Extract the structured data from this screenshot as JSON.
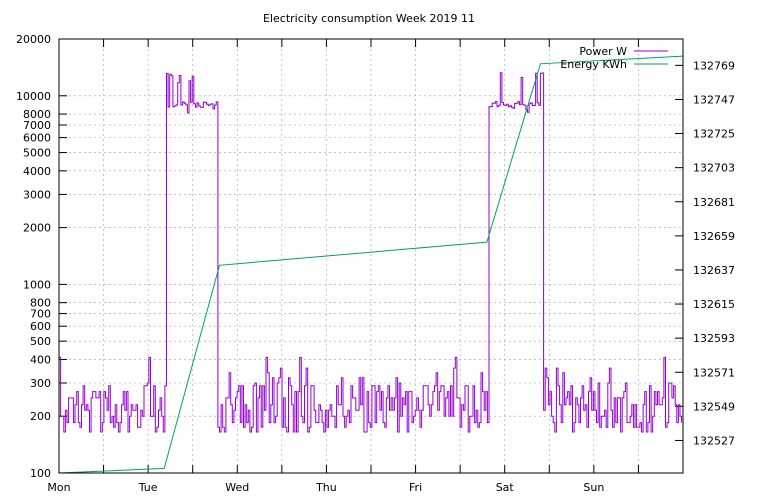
{
  "chart_data": {
    "type": "line",
    "title": "Electricity consumption Week 2019 11",
    "x_ticks": [
      "Mon",
      "Tue",
      "Wed",
      "Thu",
      "Fri",
      "Sat",
      "Sun"
    ],
    "x_range_days": [
      0,
      7
    ],
    "y_left": {
      "scale": "log",
      "range": [
        100,
        20000
      ],
      "ticks": [
        100,
        200,
        300,
        400,
        500,
        600,
        700,
        800,
        1000,
        2000,
        3000,
        4000,
        5000,
        6000,
        7000,
        8000,
        10000,
        20000
      ],
      "tick_labels": [
        "100",
        "200",
        "300",
        "400",
        "500",
        "600",
        "700",
        "800",
        "1000",
        "2000",
        "3000",
        "4000",
        "5000",
        "6000",
        "7000",
        "8000",
        "10000",
        "20000"
      ]
    },
    "y_right": {
      "scale": "linear",
      "range": [
        132506,
        132786
      ],
      "ticks": [
        132527,
        132549,
        132571,
        132593,
        132615,
        132637,
        132659,
        132681,
        132703,
        132725,
        132747,
        132769
      ],
      "tick_labels": [
        "132527",
        "132549",
        "132571",
        "132593",
        "132615",
        "132637",
        "132659",
        "132681",
        "132703",
        "132725",
        "132747",
        "132769"
      ]
    },
    "grid": true,
    "legend_position": "top-right",
    "series": [
      {
        "name": "Power W",
        "color": "#9400d3",
        "axis": "left",
        "base_levels": [
          165,
          175,
          185,
          200,
          215,
          230,
          250,
          270,
          290
        ],
        "spike_levels": [
          300,
          320,
          340,
          360,
          410
        ],
        "high_segments": [
          {
            "start_day": 1.19,
            "end_day": 1.78,
            "level": 9000,
            "jitter_low": 8000,
            "jitter_high": 13500
          },
          {
            "start_day": 4.82,
            "end_day": 5.42,
            "level": 9000,
            "jitter_low": 8000,
            "jitter_high": 13500
          }
        ]
      },
      {
        "name": "Energy KWh",
        "color": "#009e73",
        "axis": "right",
        "points": [
          {
            "day": 0.0,
            "value": 132506
          },
          {
            "day": 1.18,
            "value": 132509
          },
          {
            "day": 1.8,
            "value": 132640
          },
          {
            "day": 4.8,
            "value": 132655
          },
          {
            "day": 5.4,
            "value": 132770
          },
          {
            "day": 7.0,
            "value": 132775
          }
        ]
      }
    ]
  }
}
